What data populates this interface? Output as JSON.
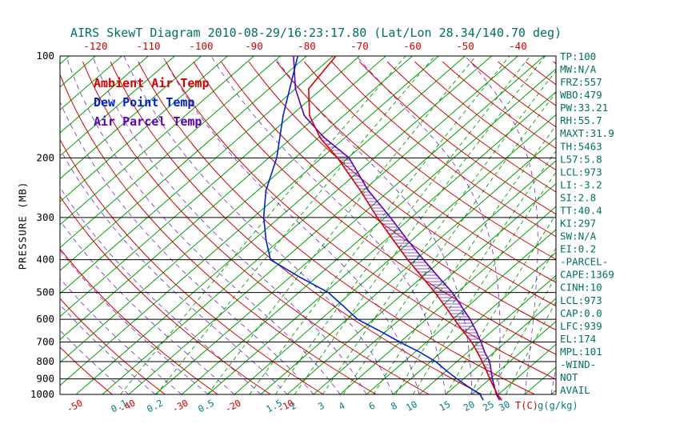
{
  "title": "AIRS SkewT Diagram 2010-08-29/16:23:17.80 (Lat/Lon 28.34/140.70 deg)",
  "colors": {
    "title_text": "#007060",
    "isotherm_green": "#00a000",
    "adiabat_red": "#d40000",
    "mixing_teal": "#008080",
    "dew_blue": "#0022cc",
    "parcel_violet": "#5c00c0",
    "axis_black": "#000000"
  },
  "legend": [
    {
      "label": "Ambient Air Temp",
      "color": "#d40000"
    },
    {
      "label": "Dew Point Temp",
      "color": "#0022cc"
    },
    {
      "label": "Air Parcel Temp",
      "color": "#5c00c0"
    }
  ],
  "axes": {
    "pressure_label": "PRESSURE (MB)",
    "pressure_ticks": [
      100,
      200,
      300,
      400,
      500,
      600,
      700,
      800,
      900,
      1000
    ],
    "top_temp_ticks": [
      -120,
      -110,
      -100,
      -90,
      -80,
      -70,
      -60,
      -50,
      -40
    ],
    "bottom_temp_ticks": [
      -50,
      -40,
      -30,
      -20,
      -10
    ],
    "bottom_temp_unit": "T(C)",
    "mixing_ratio_ticks": [
      0.1,
      0.2,
      0.5,
      1.5,
      2,
      3,
      4,
      6,
      8,
      10,
      15,
      20,
      25,
      30
    ],
    "mixing_ratio_unit": "g(g/kg)"
  },
  "right_panel": {
    "lines": [
      "TP:100",
      "MW:N/A",
      "FRZ:557",
      "WBO:479",
      "PW:33.21",
      "RH:55.7",
      "MAXT:31.9",
      "TH:5463",
      "L57:5.8",
      "LCL:973",
      "LI:-3.2",
      "SI:2.8",
      "TT:40.4",
      "KI:297",
      "SW:N/A",
      "EI:0.2",
      "-PARCEL-",
      "CAPE:1369",
      "CINH:10",
      "LCL:973",
      "CAP:0.0",
      "LFC:939",
      "EL:174",
      "MPL:101",
      "-WIND-",
      "NOT",
      "AVAIL"
    ]
  },
  "chart_data": {
    "type": "line",
    "subtype": "skewt-log-p",
    "title": "AIRS SkewT Diagram 2010-08-29/16:23:17.80 (Lat/Lon 28.34/140.70 deg)",
    "xlabel": "T(C)",
    "ylabel": "PRESSURE (MB)",
    "pressure_range_mb": [
      100,
      1000
    ],
    "temp_skew_deg_per_decade": "45deg-skew",
    "series": [
      {
        "name": "Ambient Air Temp",
        "color_key": "adiabat_red",
        "points_p_t": [
          [
            100,
            -74.5
          ],
          [
            125,
            -72.5
          ],
          [
            150,
            -66.5
          ],
          [
            175,
            -59.5
          ],
          [
            200,
            -52
          ],
          [
            250,
            -40.5
          ],
          [
            300,
            -31.5
          ],
          [
            350,
            -23.5
          ],
          [
            400,
            -16.5
          ],
          [
            450,
            -10
          ],
          [
            500,
            -4.2
          ],
          [
            550,
            0.8
          ],
          [
            600,
            5.3
          ],
          [
            650,
            9.5
          ],
          [
            700,
            13.5
          ],
          [
            750,
            16.8
          ],
          [
            800,
            19.8
          ],
          [
            850,
            22.5
          ],
          [
            900,
            25
          ],
          [
            950,
            27.5
          ],
          [
            1000,
            29.8
          ],
          [
            1040,
            31.9
          ]
        ]
      },
      {
        "name": "Dew Point Temp",
        "color_key": "dew_blue",
        "points_p_t": [
          [
            100,
            -81.7
          ],
          [
            150,
            -71.5
          ],
          [
            200,
            -63.5
          ],
          [
            250,
            -58.4
          ],
          [
            300,
            -53
          ],
          [
            350,
            -47.6
          ],
          [
            400,
            -42.5
          ],
          [
            450,
            -33.2
          ],
          [
            500,
            -24.4
          ],
          [
            550,
            -18.4
          ],
          [
            600,
            -13
          ],
          [
            650,
            -6.2
          ],
          [
            700,
            -0.1
          ],
          [
            750,
            5.9
          ],
          [
            800,
            11
          ],
          [
            850,
            14.9
          ],
          [
            900,
            18.8
          ],
          [
            950,
            22.7
          ],
          [
            1000,
            26.5
          ],
          [
            1040,
            28.4
          ]
        ]
      },
      {
        "name": "Air Parcel Temp",
        "color_key": "parcel_violet",
        "points_p_t": [
          [
            100,
            -82.5
          ],
          [
            125,
            -75
          ],
          [
            150,
            -67.5
          ],
          [
            174,
            -59
          ],
          [
            200,
            -49.8
          ],
          [
            250,
            -39
          ],
          [
            300,
            -29
          ],
          [
            350,
            -20.8
          ],
          [
            400,
            -13.5
          ],
          [
            450,
            -6.9
          ],
          [
            500,
            -0.9
          ],
          [
            550,
            3.9
          ],
          [
            600,
            8.3
          ],
          [
            650,
            12
          ],
          [
            700,
            15.3
          ],
          [
            750,
            18.2
          ],
          [
            800,
            21.2
          ],
          [
            850,
            23.4
          ],
          [
            900,
            25.5
          ],
          [
            950,
            27.6
          ],
          [
            1000,
            29.6
          ],
          [
            1040,
            31.5
          ]
        ]
      }
    ],
    "hatch_region": {
      "between": [
        "Ambient Air Temp",
        "Air Parcel Temp"
      ],
      "from_p": 939,
      "to_p": 174
    },
    "background": {
      "isotherm_min": -150,
      "isotherm_max": 45,
      "isotherm_step_c": 5,
      "dry_adiabat_theta_min_k": 220,
      "dry_adiabat_theta_max_k": 470,
      "dry_adiabat_step_k": 10,
      "mixing_ratio_lines_gkg": [
        0.1,
        0.2,
        0.5,
        1,
        1.5,
        2,
        3,
        4,
        6,
        8,
        10,
        15,
        20,
        25,
        30
      ],
      "moist_adiabat_start_temps_c": [
        -40,
        -35,
        -30,
        -25,
        -20,
        -15,
        -10,
        -5,
        0,
        5,
        10,
        15,
        20,
        25,
        30,
        35,
        40
      ]
    }
  }
}
